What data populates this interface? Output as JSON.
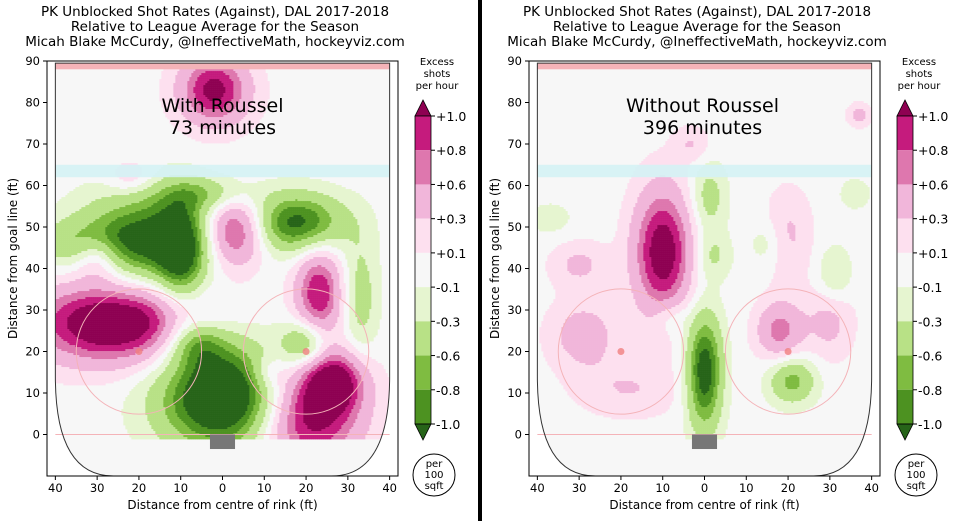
{
  "colors": {
    "neg_strong": "#276419",
    "neg_mid": "#4d9221",
    "neg_light": "#7fbc41",
    "neg_pale": "#b8e186",
    "neg_faint": "#e6f5d0",
    "neutral": "#f7f7f7",
    "pos_faint": "#fde0ef",
    "pos_pale": "#f1b6da",
    "pos_light": "#de77ae",
    "pos_mid": "#c51b7d",
    "pos_strong": "#8e0152",
    "blue_line": "#d4f2f4",
    "goal_line": "#f4b3b8",
    "net": "#777777"
  },
  "panels": [
    {
      "title_line1": "PK Unblocked Shot Rates (Against), DAL 2017-2018",
      "title_line2": "Relative to League Average for the Season",
      "title_line3": "Micah Blake McCurdy, @IneffectiveMath, hockeyviz.com",
      "overlay_line1": "With Roussel",
      "overlay_line2": "73 minutes"
    },
    {
      "title_line1": "PK Unblocked Shot Rates (Against), DAL 2017-2018",
      "title_line2": "Relative to League Average for the Season",
      "title_line3": "Micah Blake McCurdy, @IneffectiveMath, hockeyviz.com",
      "overlay_line1": "Without Roussel",
      "overlay_line2": "396 minutes"
    }
  ],
  "colorbar": {
    "title_line1": "Excess",
    "title_line2": "shots",
    "title_line3": "per hour",
    "unit_line1": "per",
    "unit_line2": "100",
    "unit_line3": "sqft"
  },
  "chart_data": [
    {
      "type": "heatmap",
      "title": "PK Unblocked Shot Rates (Against), DAL 2017-2018 — With Roussel",
      "xlabel": "Distance from centre of rink (ft)",
      "ylabel": "Distance from goal line (ft)",
      "xlim": [
        42,
        -42
      ],
      "ylim": [
        -10,
        90
      ],
      "x_ticks": [
        "40",
        "30",
        "20",
        "10",
        "0",
        "10",
        "20",
        "30",
        "40"
      ],
      "y_ticks": [
        "0",
        "10",
        "20",
        "30",
        "40",
        "50",
        "60",
        "70",
        "80",
        "90"
      ],
      "colorbar_levels": [
        "+1.0",
        "+0.8",
        "+0.6",
        "+0.3",
        "+0.1",
        "-0.1",
        "-0.3",
        "-0.6",
        "-0.8",
        "-1.0"
      ],
      "blobs": [
        {
          "x": -20,
          "y": 5,
          "sx": 9,
          "sy": 9,
          "a": 1.3
        },
        {
          "x": 26,
          "y": 27,
          "sx": 14,
          "sy": 7,
          "a": 1.4
        },
        {
          "x": 30,
          "y": 43,
          "sx": 4,
          "sy": 4,
          "a": 0.7
        },
        {
          "x": -3,
          "y": 49,
          "sx": 5,
          "sy": 6,
          "a": 1.1
        },
        {
          "x": -23,
          "y": 34,
          "sx": 4,
          "sy": 8,
          "a": 1.0
        },
        {
          "x": -27,
          "y": 13,
          "sx": 5,
          "sy": 5,
          "a": 0.9
        },
        {
          "x": 2,
          "y": 83,
          "sx": 6,
          "sy": 6,
          "a": 1.1
        },
        {
          "x": 22,
          "y": 62,
          "sx": 4,
          "sy": 3,
          "a": 0.35
        },
        {
          "x": -11,
          "y": 15,
          "sx": 3,
          "sy": 3,
          "a": 0.35
        },
        {
          "x": -1,
          "y": 9,
          "sx": 11,
          "sy": 9,
          "a": -1.6
        },
        {
          "x": 18,
          "y": 47,
          "sx": 11,
          "sy": 8,
          "a": -1.1
        },
        {
          "x": -18,
          "y": 51,
          "sx": 8,
          "sy": 5,
          "a": -1.1
        },
        {
          "x": 10,
          "y": 43,
          "sx": 4,
          "sy": 9,
          "a": -0.8
        },
        {
          "x": -20,
          "y": 22,
          "sx": 4,
          "sy": 4,
          "a": -0.8
        },
        {
          "x": -33,
          "y": 33,
          "sx": 3,
          "sy": 10,
          "a": -0.45
        },
        {
          "x": 6,
          "y": 22,
          "sx": 5,
          "sy": 4,
          "a": -0.7
        },
        {
          "x": 33,
          "y": 46,
          "sx": 8,
          "sy": 4,
          "a": -0.5
        },
        {
          "x": 4,
          "y": 58,
          "sx": 8,
          "sy": 3,
          "a": -0.5
        }
      ]
    },
    {
      "type": "heatmap",
      "title": "PK Unblocked Shot Rates (Against), DAL 2017-2018 — Without Roussel",
      "xlabel": "Distance from centre of rink (ft)",
      "ylabel": "Distance from goal line (ft)",
      "xlim": [
        42,
        -42
      ],
      "ylim": [
        -10,
        90
      ],
      "x_ticks": [
        "40",
        "30",
        "20",
        "10",
        "0",
        "10",
        "20",
        "30",
        "40"
      ],
      "y_ticks": [
        "0",
        "10",
        "20",
        "30",
        "40",
        "50",
        "60",
        "70",
        "80",
        "90"
      ],
      "colorbar_levels": [
        "+1.0",
        "+0.8",
        "+0.6",
        "+0.3",
        "+0.1",
        "-0.1",
        "-0.3",
        "-0.6",
        "-0.8",
        "-1.0"
      ],
      "blobs": [
        {
          "x": 10,
          "y": 44,
          "sx": 5,
          "sy": 11,
          "a": 1.2
        },
        {
          "x": 29,
          "y": 24,
          "sx": 6,
          "sy": 6,
          "a": 0.45
        },
        {
          "x": 30,
          "y": 41,
          "sx": 5,
          "sy": 4,
          "a": 0.35
        },
        {
          "x": -18,
          "y": 25,
          "sx": 4,
          "sy": 5,
          "a": 0.7
        },
        {
          "x": -20,
          "y": 48,
          "sx": 4,
          "sy": 8,
          "a": 0.35
        },
        {
          "x": -30,
          "y": 28,
          "sx": 4,
          "sy": 7,
          "a": 0.4
        },
        {
          "x": 3,
          "y": 70,
          "sx": 3,
          "sy": 3,
          "a": 0.3
        },
        {
          "x": -37,
          "y": 77,
          "sx": 2,
          "sy": 2,
          "a": 0.4
        },
        {
          "x": 18,
          "y": 11,
          "sx": 9,
          "sy": 5,
          "a": 0.3
        },
        {
          "x": 0,
          "y": 15,
          "sx": 3,
          "sy": 10,
          "a": -1.2
        },
        {
          "x": -21,
          "y": 13,
          "sx": 4,
          "sy": 4,
          "a": -0.7
        },
        {
          "x": -1,
          "y": 57,
          "sx": 3,
          "sy": 6,
          "a": -0.45
        },
        {
          "x": -2,
          "y": 43,
          "sx": 3,
          "sy": 4,
          "a": -0.35
        },
        {
          "x": -31,
          "y": 38,
          "sx": 3,
          "sy": 5,
          "a": -0.4
        },
        {
          "x": -15,
          "y": 46,
          "sx": 3,
          "sy": 4,
          "a": -0.25
        },
        {
          "x": 37,
          "y": 52,
          "sx": 4,
          "sy": 3,
          "a": -0.2
        },
        {
          "x": -36,
          "y": 58,
          "sx": 3,
          "sy": 3,
          "a": -0.2
        },
        {
          "x": 8,
          "y": 28,
          "sx": 3,
          "sy": 3,
          "a": -0.3
        }
      ]
    }
  ]
}
